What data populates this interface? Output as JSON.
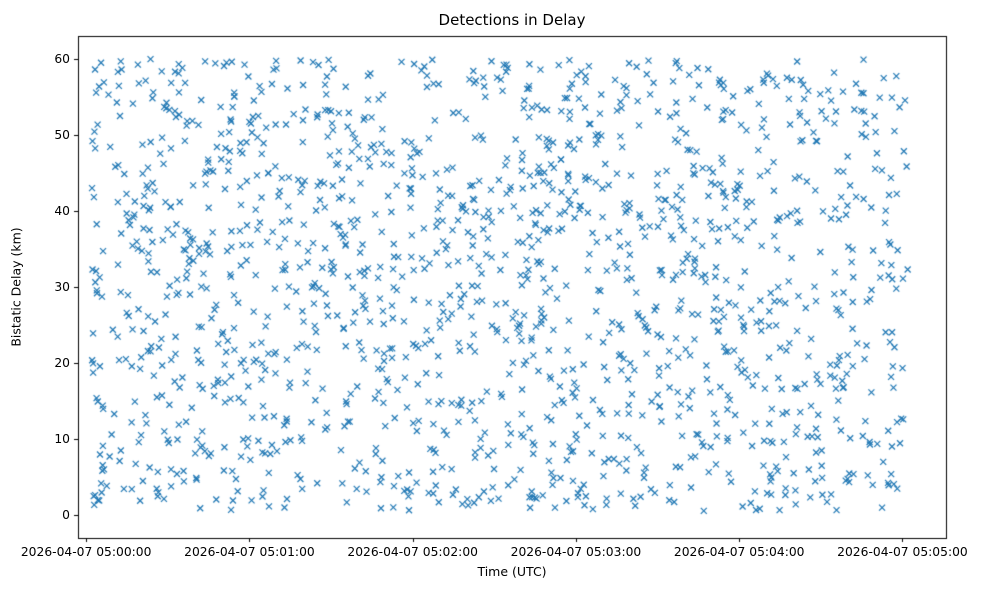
{
  "chart_data": {
    "type": "scatter",
    "title": "Detections in Delay",
    "xlabel": "Time (UTC)",
    "ylabel": "Bistatic Delay (km)",
    "marker": "x",
    "marker_color": "#1f77b4",
    "marker_size": 3,
    "marker_stroke": 1.2,
    "grid": false,
    "legend": "none",
    "x_tick_labels": [
      "2026-04-07 05:00:00",
      "2026-04-07 05:01:00",
      "2026-04-07 05:02:00",
      "2026-04-07 05:03:00",
      "2026-04-07 05:04:00",
      "2026-04-07 05:05:00"
    ],
    "x_tick_seconds": [
      0,
      60,
      120,
      180,
      240,
      300
    ],
    "y_ticks": [
      0,
      10,
      20,
      30,
      40,
      50,
      60
    ],
    "xlim_seconds": [
      -3,
      316
    ],
    "ylim": [
      -3,
      63
    ],
    "x_start": "2026-04-07 05:00:00",
    "x_end": "2026-04-07 05:05:00",
    "distribution": "uniform random scatter",
    "n_points": 1600,
    "x_range_seconds": [
      2,
      302
    ],
    "y_range_km": [
      0.5,
      60
    ],
    "seed": 7
  }
}
